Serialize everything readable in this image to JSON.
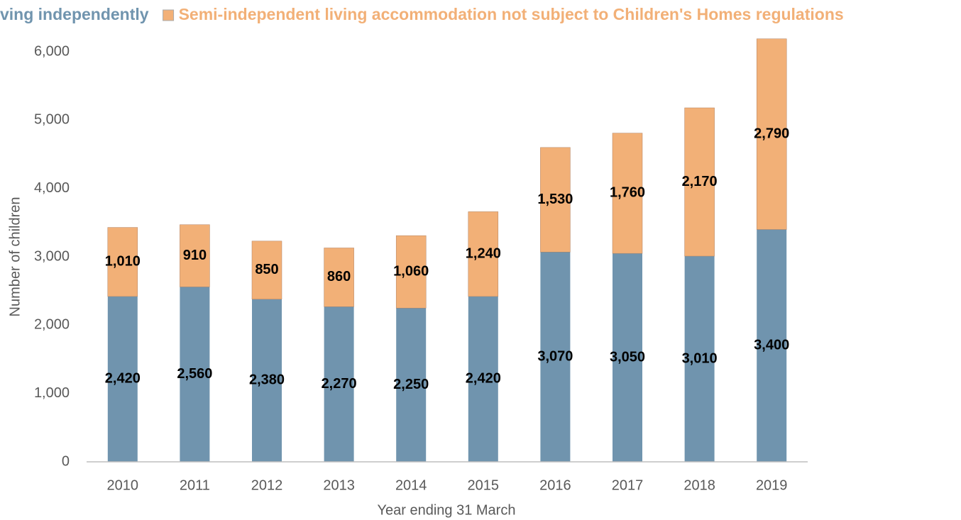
{
  "chart_data": {
    "type": "stacked_bar",
    "x_label": "Year ending 31 March",
    "y_label": "Number of children",
    "categories": [
      "2010",
      "2011",
      "2012",
      "2013",
      "2014",
      "2015",
      "2016",
      "2017",
      "2018",
      "2019"
    ],
    "series": [
      {
        "name": "ving independently",
        "color": "#7094ae",
        "values": [
          2420,
          2560,
          2380,
          2270,
          2250,
          2420,
          3070,
          3050,
          3010,
          3400
        ],
        "value_labels": [
          "2,420",
          "2,560",
          "2,380",
          "2,270",
          "2,250",
          "2,420",
          "3,070",
          "3,050",
          "3,010",
          "3,400"
        ]
      },
      {
        "name": "Semi-independent living accommodation not subject to Children's Homes regulations",
        "color": "#f2b077",
        "values": [
          1010,
          910,
          850,
          860,
          1060,
          1240,
          1530,
          1760,
          2170,
          2790
        ],
        "value_labels": [
          "1,010",
          "910",
          "850",
          "860",
          "1,060",
          "1,240",
          "1,530",
          "1,760",
          "2,170",
          "2,790"
        ]
      }
    ],
    "ylim": [
      0,
      6000
    ],
    "yticks": [
      0,
      {
        "value": 1000,
        "label": "1,000"
      },
      {
        "value": 2000,
        "label": "2,000"
      },
      {
        "value": 3000,
        "label": "3,000"
      },
      {
        "value": 4000,
        "label": "4,000"
      },
      {
        "value": 5000,
        "label": "5,000"
      },
      {
        "value": 6000,
        "label": "6,000"
      }
    ],
    "grid": false
  }
}
